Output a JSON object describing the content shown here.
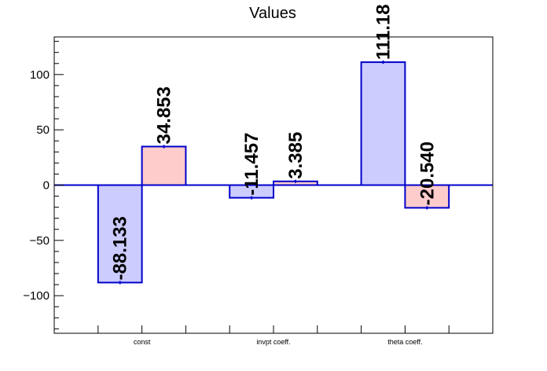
{
  "chart_data": {
    "type": "bar",
    "title": "Values",
    "xlabel": "",
    "ylabel": "",
    "ylim": [
      -134,
      134
    ],
    "yticks": [
      -100,
      -50,
      0,
      50,
      100
    ],
    "ytick_labels": [
      "−100",
      "−50",
      "0",
      "50",
      "100"
    ],
    "categories": [
      "const",
      "invpt coeff.",
      "theta coeff."
    ],
    "series": [
      {
        "values": [
          -88.133,
          -11.457,
          111.18
        ],
        "labels": [
          "-88.133",
          "-11.457",
          "111.18"
        ],
        "color": "#ccccff"
      },
      {
        "values": [
          34.853,
          3.385,
          -20.54
        ],
        "labels": [
          "34.853",
          "3.385",
          "-20.540"
        ],
        "color": "#ffcccc"
      }
    ],
    "bar_edge_color": "#0000cc",
    "zero_line_color": "#0000cc",
    "grid": false,
    "legend": "none"
  }
}
